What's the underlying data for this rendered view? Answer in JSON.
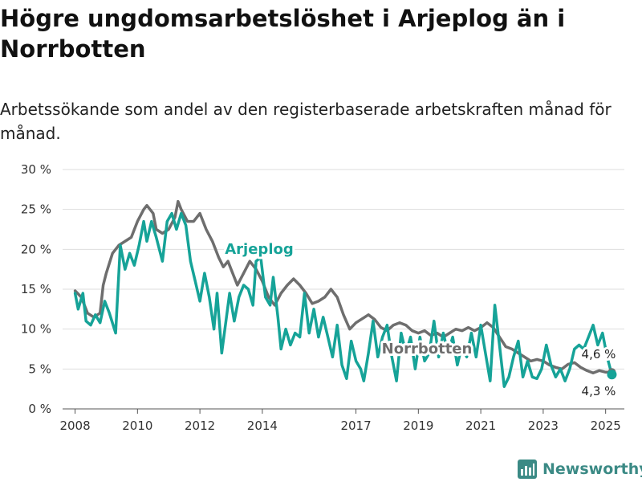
{
  "title": "Högre ungdomsarbetslöshet i Arjeplog än i Norrbotten",
  "subtitle": "Arbetssökande som andel av den registerbaserade arbetskraften månad för månad.",
  "brand": {
    "name": "Newsworthy"
  },
  "colors": {
    "arjeplog": "#16a398",
    "norrbotten": "#6e6e6e",
    "grid": "#dddddd",
    "brand": "#3b8a85"
  },
  "chart_data": {
    "type": "line",
    "title": "Högre ungdomsarbetslöshet i Arjeplog än i Norrbotten",
    "xlabel": "",
    "ylabel": "",
    "xlim": [
      2007.6,
      2025.6
    ],
    "ylim": [
      0,
      30
    ],
    "x_ticks": [
      {
        "value": 2008,
        "label": "2008"
      },
      {
        "value": 2010,
        "label": "2010"
      },
      {
        "value": 2012,
        "label": "2012"
      },
      {
        "value": 2014,
        "label": "2014"
      },
      {
        "value": 2017,
        "label": "2017"
      },
      {
        "value": 2019,
        "label": "2019"
      },
      {
        "value": 2021,
        "label": "2021"
      },
      {
        "value": 2023,
        "label": "2023"
      },
      {
        "value": 2025,
        "label": "2025"
      }
    ],
    "y_ticks": [
      {
        "value": 0,
        "label": "0 %"
      },
      {
        "value": 5,
        "label": "5 %"
      },
      {
        "value": 10,
        "label": "10 %"
      },
      {
        "value": 15,
        "label": "15 %"
      },
      {
        "value": 20,
        "label": "20 %"
      },
      {
        "value": 25,
        "label": "25 %"
      },
      {
        "value": 30,
        "label": "30 %"
      }
    ],
    "grid": true,
    "series": [
      {
        "name": "Norrbotten",
        "end_label": "4,6 %",
        "points": [
          [
            2008.0,
            14.8
          ],
          [
            2008.2,
            14.0
          ],
          [
            2008.4,
            12.0
          ],
          [
            2008.6,
            11.5
          ],
          [
            2008.8,
            12.0
          ],
          [
            2008.9,
            15.5
          ],
          [
            2009.0,
            17.0
          ],
          [
            2009.2,
            19.5
          ],
          [
            2009.4,
            20.5
          ],
          [
            2009.6,
            21.0
          ],
          [
            2009.8,
            21.5
          ],
          [
            2010.0,
            23.5
          ],
          [
            2010.2,
            25.0
          ],
          [
            2010.3,
            25.5
          ],
          [
            2010.5,
            24.5
          ],
          [
            2010.6,
            22.5
          ],
          [
            2010.8,
            22.0
          ],
          [
            2011.0,
            22.5
          ],
          [
            2011.2,
            24.0
          ],
          [
            2011.3,
            26.0
          ],
          [
            2011.4,
            25.0
          ],
          [
            2011.6,
            23.5
          ],
          [
            2011.8,
            23.5
          ],
          [
            2012.0,
            24.5
          ],
          [
            2012.2,
            22.5
          ],
          [
            2012.4,
            21.0
          ],
          [
            2012.6,
            19.0
          ],
          [
            2012.75,
            17.8
          ],
          [
            2012.9,
            18.5
          ],
          [
            2013.0,
            17.5
          ],
          [
            2013.2,
            15.5
          ],
          [
            2013.4,
            17.0
          ],
          [
            2013.6,
            18.5
          ],
          [
            2013.8,
            17.5
          ],
          [
            2014.0,
            16.0
          ],
          [
            2014.2,
            14.0
          ],
          [
            2014.4,
            13.0
          ],
          [
            2014.6,
            14.5
          ],
          [
            2014.8,
            15.5
          ],
          [
            2015.0,
            16.3
          ],
          [
            2015.2,
            15.5
          ],
          [
            2015.4,
            14.5
          ],
          [
            2015.6,
            13.2
          ],
          [
            2015.8,
            13.5
          ],
          [
            2016.0,
            14.0
          ],
          [
            2016.2,
            15.0
          ],
          [
            2016.4,
            14.0
          ],
          [
            2016.6,
            11.8
          ],
          [
            2016.8,
            10.0
          ],
          [
            2017.0,
            10.8
          ],
          [
            2017.2,
            11.3
          ],
          [
            2017.4,
            11.8
          ],
          [
            2017.6,
            11.2
          ],
          [
            2017.8,
            10.2
          ],
          [
            2018.0,
            9.8
          ],
          [
            2018.2,
            10.5
          ],
          [
            2018.4,
            10.8
          ],
          [
            2018.6,
            10.5
          ],
          [
            2018.8,
            9.8
          ],
          [
            2019.0,
            9.5
          ],
          [
            2019.2,
            9.8
          ],
          [
            2019.4,
            9.2
          ],
          [
            2019.6,
            9.5
          ],
          [
            2019.8,
            9.0
          ],
          [
            2020.0,
            9.5
          ],
          [
            2020.2,
            10.0
          ],
          [
            2020.4,
            9.8
          ],
          [
            2020.6,
            10.2
          ],
          [
            2020.8,
            9.8
          ],
          [
            2021.0,
            10.2
          ],
          [
            2021.2,
            10.8
          ],
          [
            2021.4,
            10.2
          ],
          [
            2021.6,
            9.0
          ],
          [
            2021.8,
            7.8
          ],
          [
            2022.0,
            7.5
          ],
          [
            2022.2,
            7.0
          ],
          [
            2022.4,
            6.5
          ],
          [
            2022.6,
            6.0
          ],
          [
            2022.8,
            6.2
          ],
          [
            2023.0,
            6.0
          ],
          [
            2023.2,
            5.5
          ],
          [
            2023.4,
            5.2
          ],
          [
            2023.6,
            5.0
          ],
          [
            2023.8,
            5.6
          ],
          [
            2024.0,
            5.8
          ],
          [
            2024.2,
            5.2
          ],
          [
            2024.4,
            4.8
          ],
          [
            2024.6,
            4.5
          ],
          [
            2024.8,
            4.8
          ],
          [
            2025.0,
            4.6
          ],
          [
            2025.2,
            4.6
          ]
        ]
      },
      {
        "name": "Arjeplog",
        "end_label": "4,3 %",
        "points": [
          [
            2008.0,
            14.5
          ],
          [
            2008.1,
            12.5
          ],
          [
            2008.25,
            14.5
          ],
          [
            2008.35,
            11.0
          ],
          [
            2008.5,
            10.5
          ],
          [
            2008.65,
            11.8
          ],
          [
            2008.8,
            10.8
          ],
          [
            2008.95,
            13.5
          ],
          [
            2009.1,
            12.0
          ],
          [
            2009.3,
            9.5
          ],
          [
            2009.45,
            20.5
          ],
          [
            2009.6,
            17.5
          ],
          [
            2009.75,
            19.5
          ],
          [
            2009.9,
            18.0
          ],
          [
            2010.05,
            20.5
          ],
          [
            2010.2,
            23.5
          ],
          [
            2010.3,
            21.0
          ],
          [
            2010.45,
            23.5
          ],
          [
            2010.6,
            21.5
          ],
          [
            2010.8,
            18.5
          ],
          [
            2010.95,
            23.5
          ],
          [
            2011.1,
            24.5
          ],
          [
            2011.25,
            22.5
          ],
          [
            2011.4,
            24.5
          ],
          [
            2011.55,
            23.0
          ],
          [
            2011.7,
            18.5
          ],
          [
            2011.85,
            16.0
          ],
          [
            2012.0,
            13.5
          ],
          [
            2012.15,
            17.0
          ],
          [
            2012.3,
            14.0
          ],
          [
            2012.45,
            10.0
          ],
          [
            2012.55,
            14.5
          ],
          [
            2012.7,
            7.0
          ],
          [
            2012.85,
            11.5
          ],
          [
            2012.95,
            14.5
          ],
          [
            2013.1,
            11.0
          ],
          [
            2013.25,
            14.0
          ],
          [
            2013.4,
            15.5
          ],
          [
            2013.55,
            15.0
          ],
          [
            2013.7,
            13.0
          ],
          [
            2013.8,
            18.5
          ],
          [
            2013.95,
            19.0
          ],
          [
            2014.1,
            14.0
          ],
          [
            2014.25,
            13.0
          ],
          [
            2014.35,
            16.5
          ],
          [
            2014.5,
            11.5
          ],
          [
            2014.6,
            7.5
          ],
          [
            2014.75,
            10.0
          ],
          [
            2014.9,
            8.0
          ],
          [
            2015.05,
            9.5
          ],
          [
            2015.2,
            9.0
          ],
          [
            2015.35,
            14.5
          ],
          [
            2015.5,
            9.5
          ],
          [
            2015.65,
            12.5
          ],
          [
            2015.8,
            9.0
          ],
          [
            2015.95,
            11.5
          ],
          [
            2016.1,
            9.0
          ],
          [
            2016.25,
            6.5
          ],
          [
            2016.4,
            10.5
          ],
          [
            2016.55,
            5.5
          ],
          [
            2016.7,
            3.8
          ],
          [
            2016.85,
            8.5
          ],
          [
            2017.0,
            6.0
          ],
          [
            2017.15,
            5.0
          ],
          [
            2017.25,
            3.5
          ],
          [
            2017.4,
            7.0
          ],
          [
            2017.55,
            11.0
          ],
          [
            2017.7,
            6.5
          ],
          [
            2017.85,
            9.0
          ],
          [
            2018.0,
            10.5
          ],
          [
            2018.15,
            6.5
          ],
          [
            2018.3,
            3.5
          ],
          [
            2018.45,
            9.5
          ],
          [
            2018.6,
            7.0
          ],
          [
            2018.75,
            9.0
          ],
          [
            2018.9,
            5.0
          ],
          [
            2019.05,
            9.0
          ],
          [
            2019.2,
            6.0
          ],
          [
            2019.35,
            7.0
          ],
          [
            2019.5,
            11.0
          ],
          [
            2019.65,
            6.5
          ],
          [
            2019.8,
            9.5
          ],
          [
            2019.95,
            7.0
          ],
          [
            2020.1,
            9.0
          ],
          [
            2020.25,
            5.5
          ],
          [
            2020.4,
            8.0
          ],
          [
            2020.55,
            6.5
          ],
          [
            2020.7,
            9.5
          ],
          [
            2020.85,
            6.5
          ],
          [
            2021.0,
            10.5
          ],
          [
            2021.15,
            7.0
          ],
          [
            2021.3,
            3.5
          ],
          [
            2021.45,
            13.0
          ],
          [
            2021.6,
            8.0
          ],
          [
            2021.75,
            2.8
          ],
          [
            2021.9,
            4.0
          ],
          [
            2022.05,
            6.5
          ],
          [
            2022.2,
            8.5
          ],
          [
            2022.35,
            4.0
          ],
          [
            2022.5,
            6.0
          ],
          [
            2022.65,
            4.0
          ],
          [
            2022.8,
            3.8
          ],
          [
            2022.95,
            5.0
          ],
          [
            2023.1,
            8.0
          ],
          [
            2023.25,
            5.5
          ],
          [
            2023.4,
            4.0
          ],
          [
            2023.55,
            5.0
          ],
          [
            2023.7,
            3.5
          ],
          [
            2023.85,
            5.0
          ],
          [
            2024.0,
            7.5
          ],
          [
            2024.15,
            8.0
          ],
          [
            2024.3,
            7.5
          ],
          [
            2024.45,
            9.0
          ],
          [
            2024.6,
            10.5
          ],
          [
            2024.75,
            8.0
          ],
          [
            2024.9,
            9.5
          ],
          [
            2025.05,
            6.5
          ],
          [
            2025.2,
            4.3
          ]
        ]
      }
    ]
  }
}
